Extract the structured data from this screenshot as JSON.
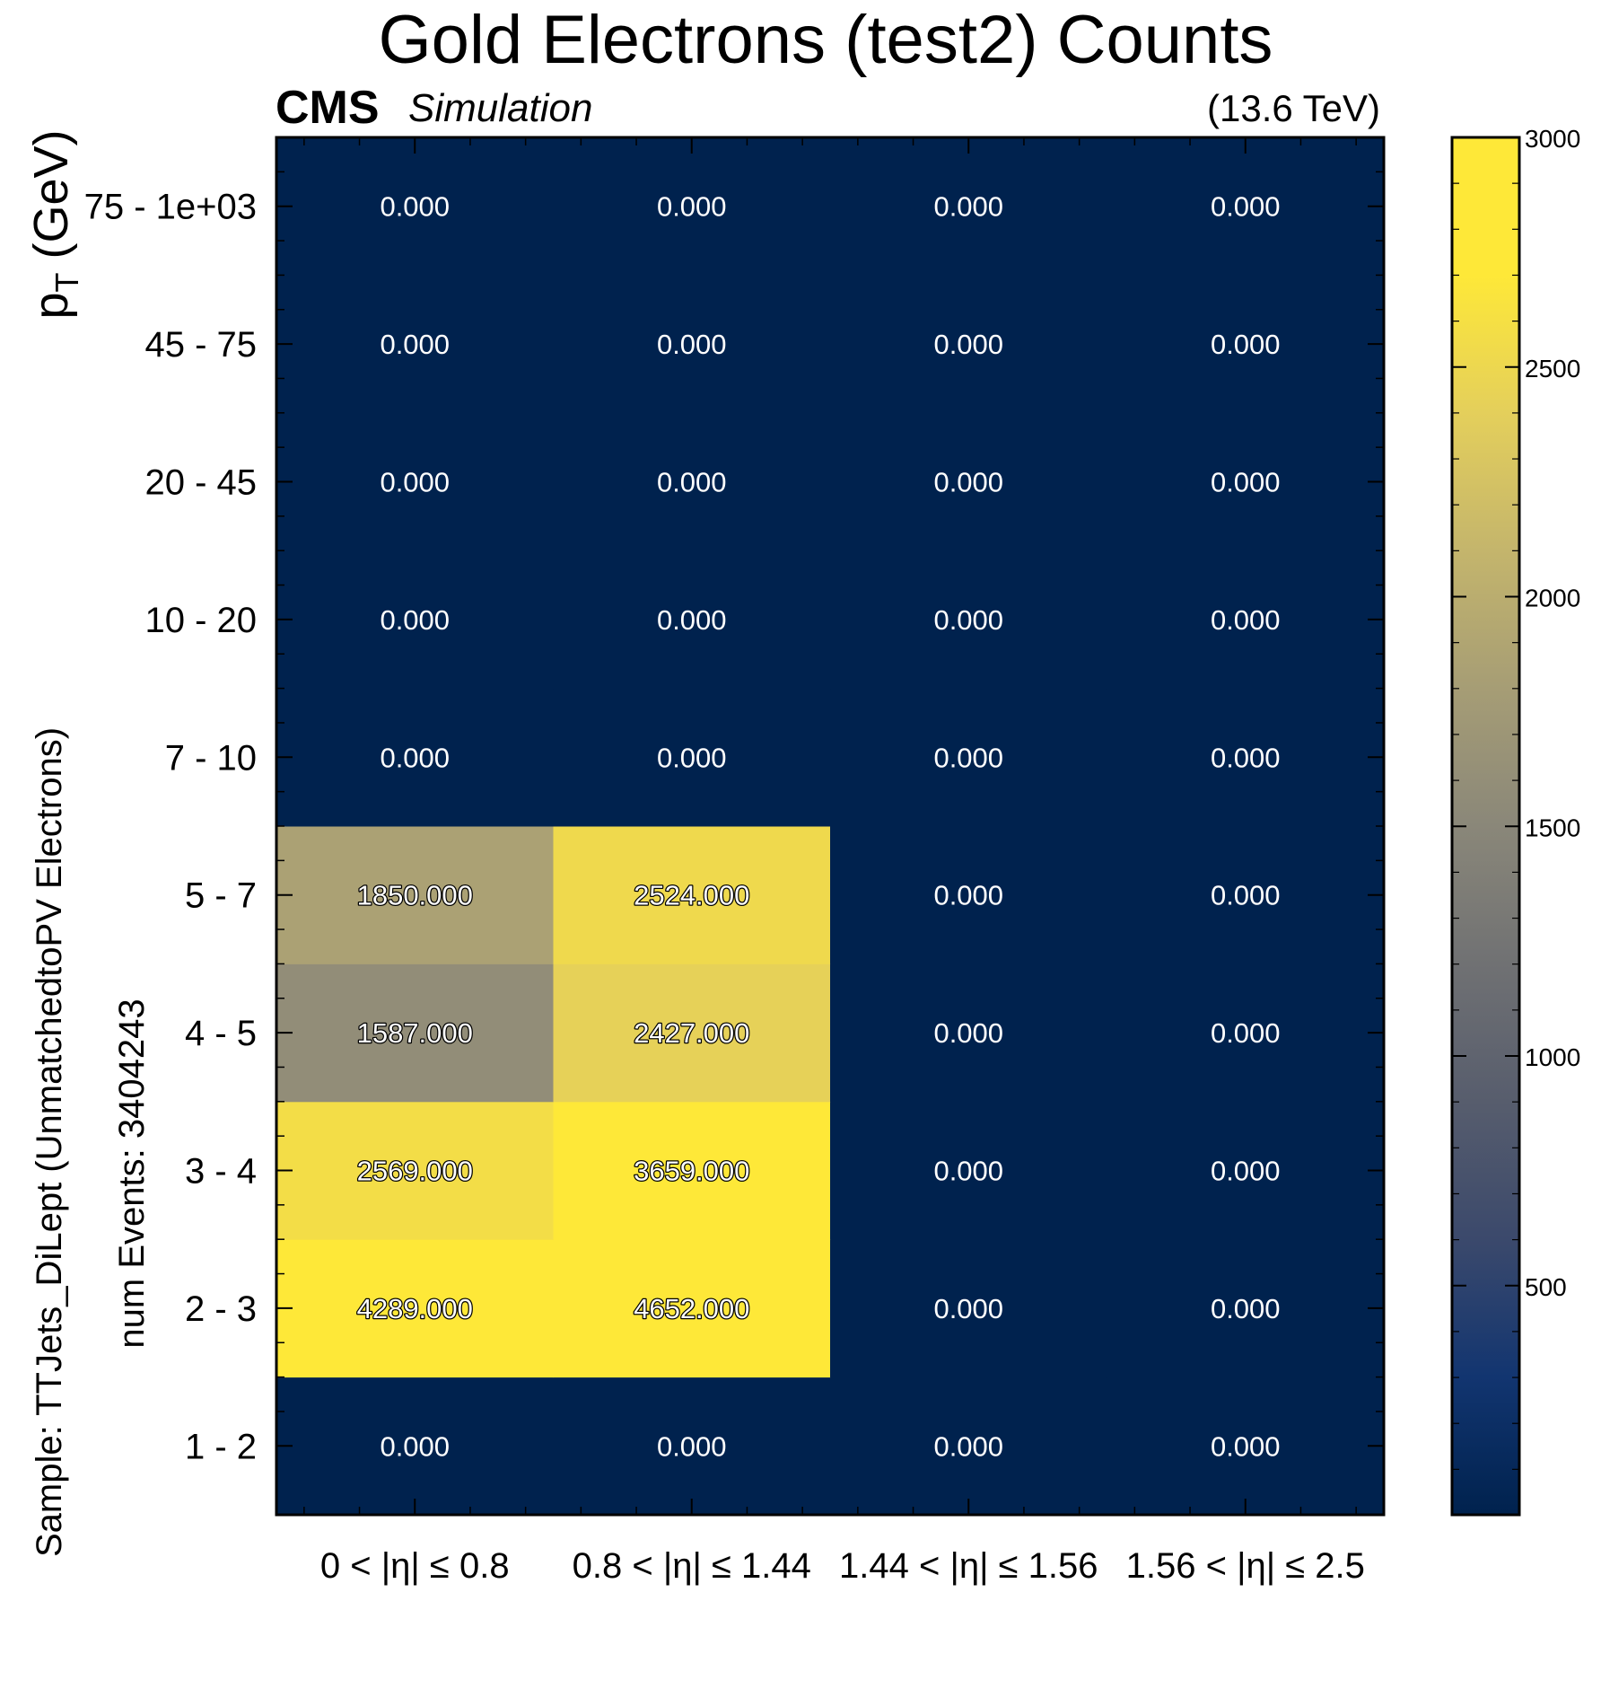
{
  "chart_data": {
    "type": "heatmap",
    "title": "Gold Electrons (test2) Counts",
    "experiment_label": "CMS",
    "experiment_sublabel": "Simulation",
    "energy_label": "(13.6 TeV)",
    "ylabel": "p",
    "ylabel_subscript": "T",
    "ylabel_unit": " (GeV)",
    "side_labels": [
      "Sample: TTJets_DiLept (UnmatchedtoPV Electrons)",
      "num Events: 3404243"
    ],
    "x_categories": [
      "0  < |η| ≤  0.8",
      "0.8  < |η| ≤  1.44",
      "1.44  < |η| ≤  1.56",
      "1.56  < |η| ≤  2.5"
    ],
    "y_categories": [
      "1 - 2",
      "2 - 3",
      "3 - 4",
      "4 - 5",
      "5 - 7",
      "7 - 10",
      "10 - 20",
      "20 - 45",
      "45 - 75",
      "75 - 1e+03"
    ],
    "values": [
      [
        0,
        0,
        0,
        0
      ],
      [
        4289,
        4652,
        0,
        0
      ],
      [
        2569,
        3659,
        0,
        0
      ],
      [
        1587,
        2427,
        0,
        0
      ],
      [
        1850,
        2524,
        0,
        0
      ],
      [
        0,
        0,
        0,
        0
      ],
      [
        0,
        0,
        0,
        0
      ],
      [
        0,
        0,
        0,
        0
      ],
      [
        0,
        0,
        0,
        0
      ],
      [
        0,
        0,
        0,
        0
      ]
    ],
    "value_labels": [
      [
        "0.000",
        "0.000",
        "0.000",
        "0.000"
      ],
      [
        "4289.000",
        "4652.000",
        "0.000",
        "0.000"
      ],
      [
        "2569.000",
        "3659.000",
        "0.000",
        "0.000"
      ],
      [
        "1587.000",
        "2427.000",
        "0.000",
        "0.000"
      ],
      [
        "1850.000",
        "2524.000",
        "0.000",
        "0.000"
      ],
      [
        "0.000",
        "0.000",
        "0.000",
        "0.000"
      ],
      [
        "0.000",
        "0.000",
        "0.000",
        "0.000"
      ],
      [
        "0.000",
        "0.000",
        "0.000",
        "0.000"
      ],
      [
        "0.000",
        "0.000",
        "0.000",
        "0.000"
      ],
      [
        "0.000",
        "0.000",
        "0.000",
        "0.000"
      ]
    ],
    "colorbar": {
      "range": [
        1,
        3000
      ],
      "tick_values": [
        500,
        1000,
        1500,
        2000,
        2500,
        3000
      ],
      "tick_labels": [
        "500",
        "1000",
        "1500",
        "2000",
        "2500",
        "3000"
      ],
      "colormap": "cividis",
      "zero_color": "#00224e"
    },
    "grid": false
  }
}
